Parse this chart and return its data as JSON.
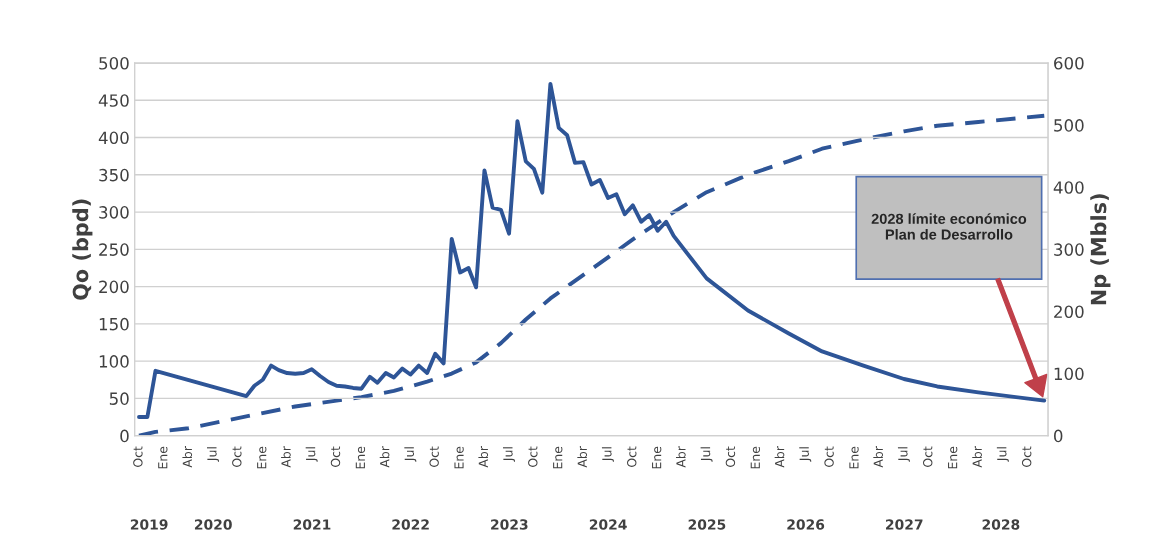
{
  "chart_data": {
    "type": "line",
    "ylabel": "Qo (bpd)",
    "y2label": "Np (Mbls)",
    "xlim": [
      "2019-09-15",
      "2028-12-15"
    ],
    "ylim": [
      0,
      500
    ],
    "yticks": [
      0,
      50,
      100,
      150,
      200,
      250,
      300,
      350,
      400,
      450,
      500
    ],
    "y2lim": [
      0,
      600
    ],
    "y2ticks": [
      0,
      100,
      200,
      300,
      400,
      500,
      600
    ],
    "xticks": [
      {
        "value": "2019-10",
        "label": "Oct"
      },
      {
        "value": "2020-01",
        "label": "Ene"
      },
      {
        "value": "2020-04",
        "label": "Abr"
      },
      {
        "value": "2020-07",
        "label": "Jul"
      },
      {
        "value": "2020-10",
        "label": "Oct"
      },
      {
        "value": "2021-01",
        "label": "Ene"
      },
      {
        "value": "2021-04",
        "label": "Abr"
      },
      {
        "value": "2021-07",
        "label": "Jul"
      },
      {
        "value": "2021-10",
        "label": "Oct"
      },
      {
        "value": "2022-01",
        "label": "Ene"
      },
      {
        "value": "2022-04",
        "label": "Abr"
      },
      {
        "value": "2022-07",
        "label": "Jul"
      },
      {
        "value": "2022-10",
        "label": "Oct"
      },
      {
        "value": "2023-01",
        "label": "Ene"
      },
      {
        "value": "2023-04",
        "label": "Abr"
      },
      {
        "value": "2023-07",
        "label": "Jul"
      },
      {
        "value": "2023-10",
        "label": "Oct"
      },
      {
        "value": "2024-01",
        "label": "Ene"
      },
      {
        "value": "2024-04",
        "label": "Abr"
      },
      {
        "value": "2024-07",
        "label": "Jul"
      },
      {
        "value": "2024-10",
        "label": "Oct"
      },
      {
        "value": "2025-01",
        "label": "Ene"
      },
      {
        "value": "2025-04",
        "label": "Abr"
      },
      {
        "value": "2025-07",
        "label": "Jul"
      },
      {
        "value": "2025-10",
        "label": "Oct"
      },
      {
        "value": "2026-01",
        "label": "Ene"
      },
      {
        "value": "2026-04",
        "label": "Abr"
      },
      {
        "value": "2026-07",
        "label": "Jul"
      },
      {
        "value": "2026-10",
        "label": "Oct"
      },
      {
        "value": "2027-01",
        "label": "Ene"
      },
      {
        "value": "2027-04",
        "label": "Abr"
      },
      {
        "value": "2027-07",
        "label": "Jul"
      },
      {
        "value": "2027-10",
        "label": "Oct"
      },
      {
        "value": "2028-01",
        "label": "Ene"
      },
      {
        "value": "2028-04",
        "label": "Abr"
      },
      {
        "value": "2028-07",
        "label": "Jul"
      },
      {
        "value": "2028-10",
        "label": "Oct"
      }
    ],
    "grid": "y",
    "series": [
      {
        "color": "#2e5597",
        "line_style": "solid",
        "x": [
          "2019-10",
          "2019-11",
          "2019-12",
          "2020-11",
          "2020-12",
          "2021-01",
          "2021-02",
          "2021-03",
          "2021-04",
          "2021-05",
          "2021-06",
          "2021-07",
          "2021-08",
          "2021-09",
          "2021-10",
          "2021-11",
          "2021-12",
          "2022-01",
          "2022-02",
          "2022-03",
          "2022-04",
          "2022-05",
          "2022-06",
          "2022-07",
          "2022-08",
          "2022-09",
          "2022-10",
          "2022-11",
          "2022-12",
          "2023-01",
          "2023-02",
          "2023-03",
          "2023-04",
          "2023-05",
          "2023-06",
          "2023-07",
          "2023-08",
          "2023-09",
          "2023-10",
          "2023-11",
          "2023-12",
          "2024-01",
          "2024-02",
          "2024-03",
          "2024-04",
          "2024-05",
          "2024-06",
          "2024-07",
          "2024-08",
          "2024-09",
          "2024-10",
          "2024-11",
          "2024-12",
          "2025-01",
          "2025-02",
          "2025-03",
          "2025-07",
          "2025-12",
          "2026-05",
          "2026-09",
          "2027-02",
          "2027-07",
          "2027-11",
          "2028-04",
          "2028-12"
        ],
        "values": [
          25,
          25,
          87,
          53,
          67,
          75,
          94,
          88,
          84,
          83,
          84,
          89,
          80,
          72,
          67,
          66,
          64,
          63,
          79,
          71,
          84,
          78,
          90,
          82,
          94,
          84,
          110,
          97,
          264,
          219,
          225,
          199,
          356,
          306,
          303,
          271,
          422,
          368,
          358,
          326,
          472,
          413,
          403,
          366,
          367,
          337,
          343,
          319,
          324,
          297,
          309,
          287,
          296,
          275,
          287,
          268,
          211,
          168,
          137,
          113,
          94,
          76,
          66,
          58,
          47
        ]
      },
      {
        "color": "#2e5597",
        "line_style": "dashed",
        "axis": "y2",
        "x": [
          "2019-10",
          "2019-12",
          "2020-04",
          "2020-11",
          "2021-05",
          "2022-01",
          "2022-05",
          "2022-09",
          "2022-12",
          "2023-03",
          "2023-06",
          "2023-09",
          "2023-12",
          "2024-05",
          "2024-10",
          "2025-03",
          "2025-07",
          "2025-12",
          "2026-05",
          "2026-09",
          "2027-02",
          "2027-07",
          "2027-11",
          "2028-04",
          "2028-12"
        ],
        "values": [
          0,
          6,
          12,
          31,
          47,
          62,
          72,
          87,
          100,
          118,
          149,
          187,
          221,
          268,
          316,
          360,
          392,
          420,
          442,
          462,
          477,
          490,
          499,
          505,
          515
        ]
      }
    ],
    "annotations": [
      "2028 límite económico Plan de Desarrollo",
      "2019",
      "2020",
      "2021",
      "2022",
      "2023",
      "2024",
      "2025",
      "2026",
      "2027",
      "2028"
    ]
  }
}
